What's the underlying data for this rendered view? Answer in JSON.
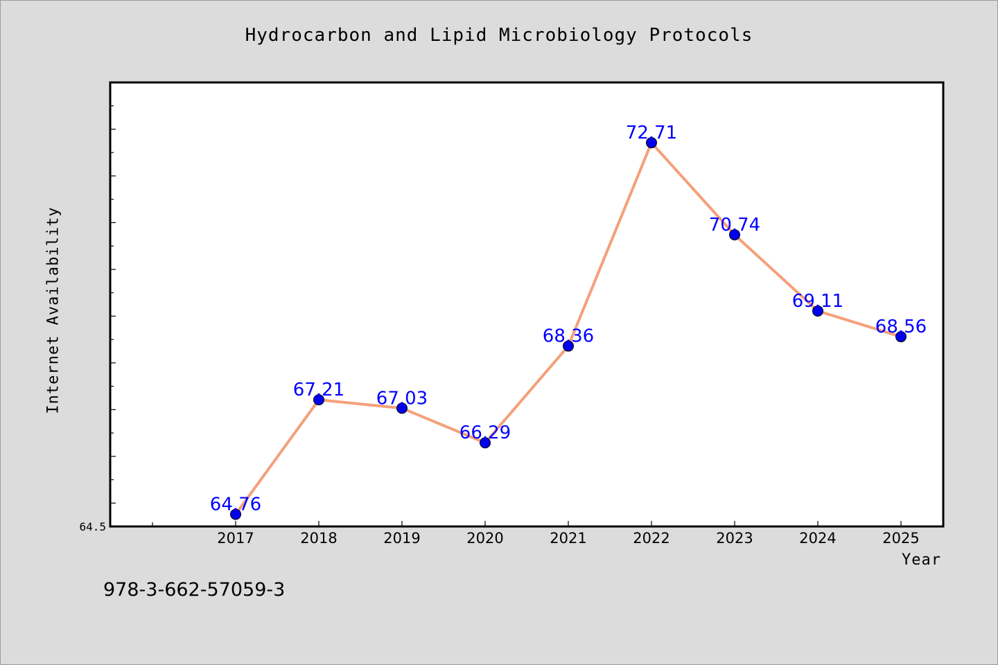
{
  "footer_code": "978-3-662-57059-3",
  "colors": {
    "line": "#f4a07a",
    "marker": "#0000ee",
    "label": "#0000ff",
    "background": "#dcdcdc",
    "plot_bg": "#ffffff"
  },
  "chart_data": {
    "type": "line",
    "title": "Hydrocarbon and Lipid Microbiology Protocols",
    "xlabel": "Year",
    "ylabel": "Internet Availability",
    "categories": [
      "2017",
      "2018",
      "2019",
      "2020",
      "2021",
      "2022",
      "2023",
      "2024",
      "2025"
    ],
    "series": [
      {
        "values": [
          64.76,
          67.21,
          67.03,
          66.29,
          68.36,
          72.71,
          70.74,
          69.11,
          68.56
        ]
      }
    ],
    "ylim": [
      64.5,
      74.0
    ],
    "ytick_labels": [
      "64.5"
    ],
    "grid": false,
    "legend": "none"
  }
}
